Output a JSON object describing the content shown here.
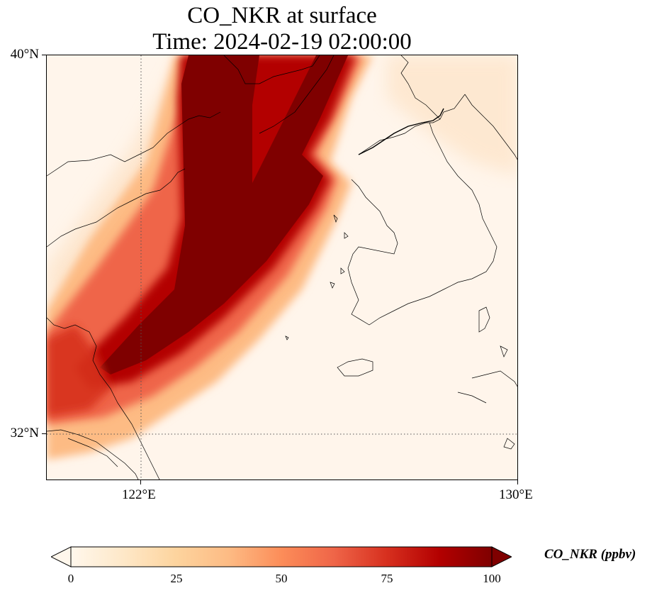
{
  "title": {
    "line1": "CO_NKR at surface",
    "line2": "Time: 2024-02-19 02:00:00"
  },
  "map": {
    "lon_range": [
      121,
      130
    ],
    "lat_range": [
      31.1,
      40
    ],
    "projection": "PlateCarree",
    "gridlines": {
      "lon": [
        122
      ],
      "lat": [
        32
      ],
      "style": "dotted"
    },
    "lon_ticks": [
      {
        "value": 122,
        "label": "122°E"
      },
      {
        "value": 130,
        "label": "130°E"
      }
    ],
    "lat_ticks": [
      {
        "value": 40,
        "label": "40°N"
      },
      {
        "value": 32,
        "label": "32°N"
      }
    ],
    "features": [
      "coastlines",
      "borders"
    ]
  },
  "colorbar": {
    "label": "CO_NKR (ppbv)",
    "min": 0,
    "max": 100,
    "extend": "both",
    "cmap": "OrRd",
    "colors": [
      "#fff7ec",
      "#fee8c8",
      "#fdd49e",
      "#fdbb84",
      "#fc8d59",
      "#ef6548",
      "#d7301f",
      "#b30000",
      "#7f0000"
    ],
    "ticks": [
      {
        "value": 0,
        "label": "0"
      },
      {
        "value": 25,
        "label": "25"
      },
      {
        "value": 50,
        "label": "50"
      },
      {
        "value": 75,
        "label": "75"
      },
      {
        "value": 100,
        "label": "100"
      }
    ]
  },
  "plume": {
    "description_field": "CO concentration field",
    "max_region_ppbv": 100
  }
}
